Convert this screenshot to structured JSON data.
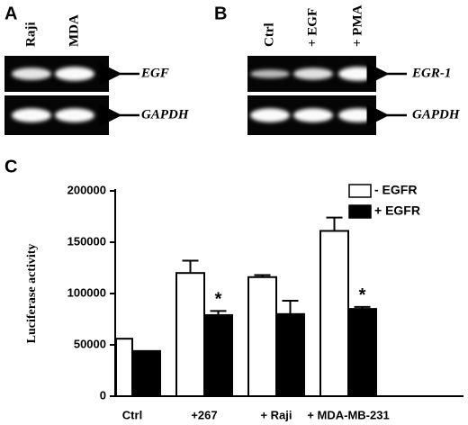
{
  "panels": [
    {
      "label": "A",
      "lanes": [
        "Raji",
        "MDA"
      ],
      "bands": [
        "EGF",
        "GAPDH"
      ]
    },
    {
      "label": "B",
      "lanes": [
        "Ctrl",
        "+ EGF",
        "+ PMA"
      ],
      "bands": [
        "EGR-1",
        "GAPDH"
      ]
    }
  ],
  "chart_data": {
    "type": "bar",
    "panel_label": "C",
    "y_label": "Luciferase activity",
    "categories": [
      "Ctrl",
      "+267",
      "+ Raji",
      "+ MDA-MB-231"
    ],
    "series": [
      {
        "name": "- EGFR",
        "color": "#ffffff",
        "values": [
          56000,
          120000,
          116000,
          161000
        ],
        "errors": [
          0,
          12000,
          2000,
          13000
        ]
      },
      {
        "name": "+ EGFR",
        "color": "#000000",
        "values": [
          44000,
          79000,
          80000,
          85000
        ],
        "errors": [
          0,
          4000,
          13000,
          2000
        ],
        "markers": [
          null,
          "*",
          null,
          "*"
        ]
      }
    ],
    "ylim": [
      0,
      200000
    ],
    "yticks": [
      0,
      50000,
      100000,
      150000,
      200000
    ],
    "legend": "top-right"
  }
}
